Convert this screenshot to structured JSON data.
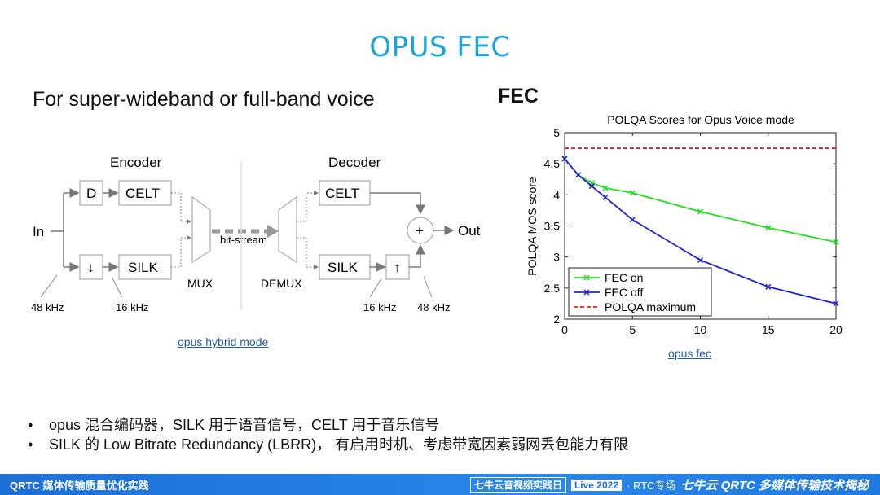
{
  "slide": {
    "title": "OPUS FEC",
    "subtitle": "For super-wideband or full-band voice",
    "fec_label": "FEC"
  },
  "diagram": {
    "encoder": "Encoder",
    "decoder": "Decoder",
    "in": "In",
    "out": "Out",
    "d": "D",
    "down": "↓",
    "up": "↑",
    "plus": "+",
    "celt_enc": "CELT",
    "silk_enc": "SILK",
    "celt_dec": "CELT",
    "silk_dec": "SILK",
    "bitstream": "bit-stream",
    "mux": "MUX",
    "demux": "DEMUX",
    "f48_left": "48 kHz",
    "f16_left": "16 kHz",
    "f16_right": "16 kHz",
    "f48_right": "48 kHz"
  },
  "links": {
    "hybrid": "opus hybrid mode",
    "fec": "opus fec"
  },
  "chart_data": {
    "type": "line",
    "title": "POLQA Scores for Opus Voice mode",
    "ylabel": "POLQA MOS score",
    "xlabel": "",
    "xlim": [
      0,
      20
    ],
    "ylim": [
      2,
      5
    ],
    "xticks": [
      0,
      5,
      10,
      15,
      20
    ],
    "yticks": [
      2,
      2.5,
      3,
      3.5,
      4,
      4.5,
      5
    ],
    "grid": false,
    "legend_position": "bottom-left",
    "series": [
      {
        "name": "FEC on",
        "color": "#22dd22",
        "marker": "x",
        "x": [
          0,
          1,
          2,
          3,
          5,
          10,
          15,
          20
        ],
        "y": [
          4.58,
          4.32,
          4.19,
          4.11,
          4.03,
          3.73,
          3.47,
          3.24
        ]
      },
      {
        "name": "FEC off",
        "color": "#2222cc",
        "marker": "x",
        "x": [
          0,
          1,
          2,
          3,
          5,
          10,
          15,
          20
        ],
        "y": [
          4.58,
          4.32,
          4.14,
          3.96,
          3.6,
          2.95,
          2.52,
          2.25
        ]
      },
      {
        "name": "POLQA maximum",
        "color": "#dd2222",
        "dash": true,
        "x": [
          0,
          20
        ],
        "y": [
          4.75,
          4.75
        ]
      }
    ]
  },
  "bullets": [
    "opus 混合编码器，SILK 用于语音信号，CELT 用于音乐信号",
    "SILK 的 Low Bitrate Redundancy (LBRR)， 有启用时机、考虑带宽因素弱网丢包能力有限"
  ],
  "footer": {
    "left": "QRTC 媒体传输质量优化实践",
    "event": "七牛云音视频实践日",
    "live": "Live 2022",
    "session": "· RTC专场",
    "brand": "七牛云 QRTC 多媒体传输技术揭秘"
  }
}
